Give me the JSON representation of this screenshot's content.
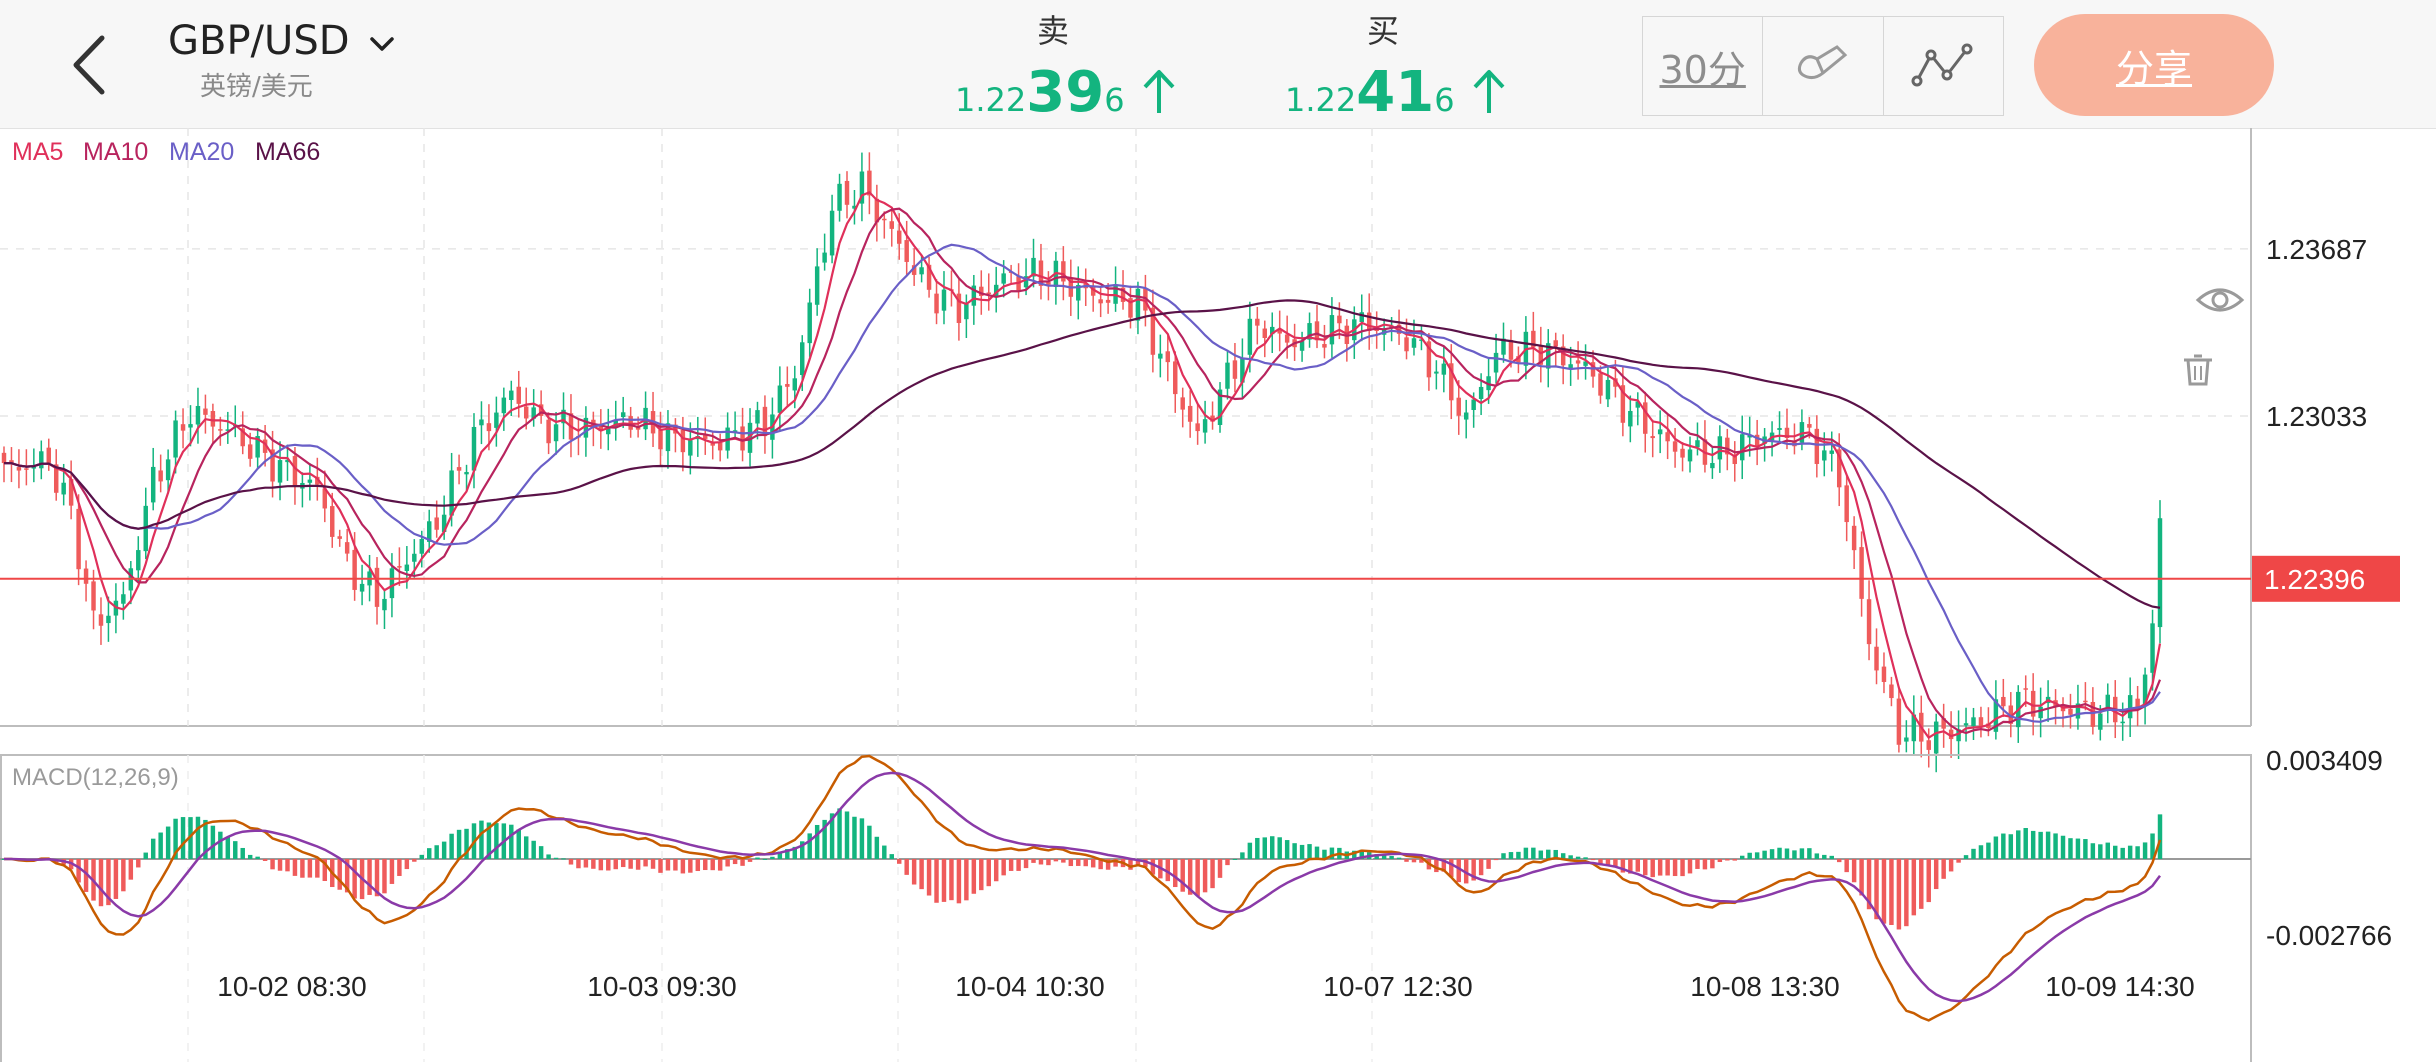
{
  "header": {
    "pair": "GBP/USD",
    "pair_sub": "英镑/美元",
    "sell_label": "卖",
    "buy_label": "买",
    "sell": {
      "pre": "1.22",
      "big": "39",
      "post": "6"
    },
    "buy": {
      "pre": "1.22",
      "big": "41",
      "post": "6"
    },
    "interval": "30分",
    "share": "分享",
    "icons": [
      "back-arrow-icon",
      "chevron-down-icon",
      "up-arrow-icon",
      "draw-brush-icon",
      "indicator-line-icon",
      "eye-icon",
      "trash-icon"
    ]
  },
  "colors": {
    "up": "#13b47f",
    "down": "#ef5b5b",
    "ma5": "#e0305a",
    "ma10": "#b8245e",
    "ma20": "#6a5fc7",
    "ma66": "#5a1248",
    "price_line": "#ef4747",
    "macd_dif": "#c75c00",
    "macd_dea": "#8a3aa8",
    "share": "#f8b29b"
  },
  "chart_data": [
    {
      "type": "candlestick",
      "title": "",
      "legend": [
        "MA5",
        "MA10",
        "MA20",
        "MA66"
      ],
      "y_ticks": [
        "1.23687",
        "1.23033"
      ],
      "current_price": "1.22396",
      "x_ticks": [
        "10-02 08:30",
        "10-03 09:30",
        "10-04 10:30",
        "10-07 12:30",
        "10-08 13:30",
        "10-09 14:30"
      ],
      "ylim": [
        1.2182,
        1.2416
      ],
      "grid": true,
      "close_anchors": [
        [
          0,
          1.2282
        ],
        [
          6,
          1.2286
        ],
        [
          9,
          1.2265
        ],
        [
          12,
          1.2222
        ],
        [
          16,
          1.2232
        ],
        [
          20,
          1.2278
        ],
        [
          25,
          1.2305
        ],
        [
          30,
          1.2298
        ],
        [
          36,
          1.2285
        ],
        [
          42,
          1.2275
        ],
        [
          46,
          1.2245
        ],
        [
          50,
          1.2232
        ],
        [
          54,
          1.2247
        ],
        [
          58,
          1.2262
        ],
        [
          63,
          1.2295
        ],
        [
          68,
          1.2312
        ],
        [
          72,
          1.23
        ],
        [
          78,
          1.2298
        ],
        [
          84,
          1.2302
        ],
        [
          90,
          1.2294
        ],
        [
          96,
          1.2293
        ],
        [
          102,
          1.2301
        ],
        [
          106,
          1.232
        ],
        [
          111,
          1.2385
        ],
        [
          115,
          1.2393
        ],
        [
          120,
          1.237
        ],
        [
          124,
          1.2352
        ],
        [
          128,
          1.2346
        ],
        [
          134,
          1.2357
        ],
        [
          140,
          1.2359
        ],
        [
          146,
          1.235
        ],
        [
          152,
          1.2348
        ],
        [
          156,
          1.232
        ],
        [
          160,
          1.2295
        ],
        [
          164,
          1.2318
        ],
        [
          168,
          1.234
        ],
        [
          172,
          1.2332
        ],
        [
          176,
          1.2335
        ],
        [
          182,
          1.234
        ],
        [
          188,
          1.2334
        ],
        [
          192,
          1.2322
        ],
        [
          196,
          1.2302
        ],
        [
          200,
          1.2328
        ],
        [
          206,
          1.233
        ],
        [
          212,
          1.2322
        ],
        [
          218,
          1.2305
        ],
        [
          224,
          1.229
        ],
        [
          230,
          1.2288
        ],
        [
          236,
          1.2296
        ],
        [
          242,
          1.2296
        ],
        [
          246,
          1.228
        ],
        [
          250,
          1.2215
        ],
        [
          254,
          1.218
        ],
        [
          258,
          1.2178
        ],
        [
          262,
          1.2181
        ],
        [
          266,
          1.2185
        ],
        [
          270,
          1.2192
        ],
        [
          276,
          1.2189
        ],
        [
          282,
          1.2187
        ],
        [
          286,
          1.2189
        ],
        [
          288,
          1.2222
        ],
        [
          289,
          1.2262
        ]
      ],
      "ma_windows": {
        "MA5": 5,
        "MA10": 10,
        "MA20": 20,
        "MA66": 66
      }
    },
    {
      "type": "macd",
      "title": "MACD(12,26,9)",
      "y_ticks": [
        "0.003409",
        "-0.002766"
      ],
      "ylim": [
        -0.002766,
        0.003409
      ]
    }
  ]
}
